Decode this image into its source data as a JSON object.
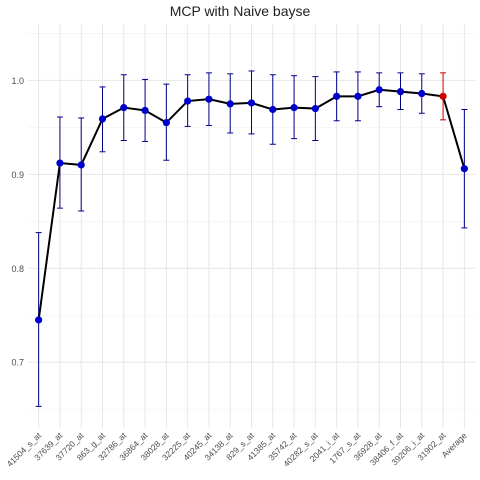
{
  "chart_data": {
    "type": "line",
    "title": "MCP with Naive bayse",
    "xlabel": "",
    "ylabel": "",
    "ylim": [
      0.63,
      1.06
    ],
    "yticks": [
      0.7,
      0.8,
      0.9,
      1.0
    ],
    "ytick_labels": [
      "0.7",
      "0.8",
      "0.9",
      "1.0"
    ],
    "grid": true,
    "categories": [
      "41504_s_at",
      "37639_at",
      "37720_at",
      "863_g_at",
      "32786_at",
      "36864_at",
      "38028_at",
      "32225_at",
      "40245_at",
      "34138_at",
      "829_s_at",
      "41385_at",
      "35742_at",
      "40282_s_at",
      "2041_i_at",
      "1767_s_at",
      "36928_at",
      "38406_f_at",
      "39206_i_at",
      "31902_at",
      "Average"
    ],
    "series": [
      {
        "values": [
          0.745,
          0.912,
          0.91,
          0.959,
          0.971,
          0.968,
          0.955,
          0.978,
          0.98,
          0.975,
          0.976,
          0.969,
          0.971,
          0.97,
          0.983,
          0.983,
          0.99,
          0.988,
          0.986,
          0.983,
          0.906
        ],
        "err_low": [
          0.653,
          0.864,
          0.861,
          0.924,
          0.936,
          0.935,
          0.915,
          0.951,
          0.952,
          0.944,
          0.943,
          0.932,
          0.938,
          0.936,
          0.957,
          0.957,
          0.972,
          0.969,
          0.965,
          0.958,
          0.843
        ],
        "err_high": [
          0.838,
          0.961,
          0.96,
          0.993,
          1.006,
          1.001,
          0.996,
          1.006,
          1.008,
          1.007,
          1.01,
          1.006,
          1.005,
          1.004,
          1.009,
          1.009,
          1.008,
          1.008,
          1.007,
          1.008,
          0.969
        ],
        "highlight_index": 19
      }
    ],
    "colors": {
      "line": "#000000",
      "point": "#0000cc",
      "errorbar": "#00008b",
      "highlight": "#cc0000",
      "grid_major": "#e6e6e6",
      "grid_minor": "#f2f2f2",
      "tick_text": "#4d4d4d"
    }
  }
}
